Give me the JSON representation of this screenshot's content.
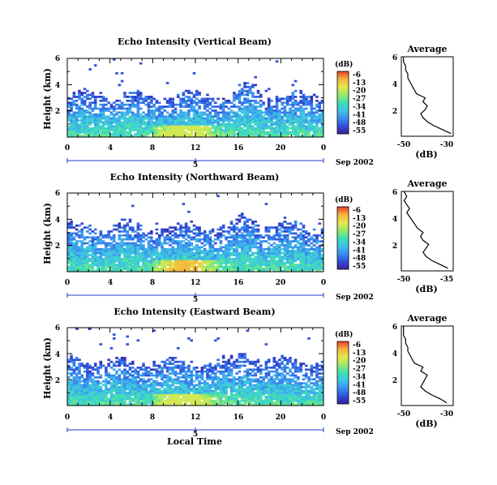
{
  "colors": {
    "colormap": [
      "#3b1fa0",
      "#2e4fd8",
      "#3a8ef0",
      "#3fc4e6",
      "#3ee0b0",
      "#9ae86a",
      "#e6e84a",
      "#f6b23c",
      "#e8402a"
    ],
    "line": "#000000",
    "day_axis": "#1e3cc8"
  },
  "shared": {
    "date_label": "Sep 2002",
    "day_tick_label": "5",
    "local_time_label": "Local Time",
    "ylabel": "Height (km)",
    "cbar_unit": "(dB)",
    "cbar_ticks": [
      "-6",
      "-13",
      "-20",
      "-27",
      "-34",
      "-41",
      "-48",
      "-55"
    ],
    "avg_title": "Average",
    "avg_xlabel": "(dB)",
    "time_ticks": [
      "0",
      "4",
      "8",
      "12",
      "16",
      "20",
      "0"
    ],
    "height_ticks": [
      "6",
      "4",
      "2"
    ],
    "avg_height_ticks": [
      "6",
      "4",
      "2"
    ]
  },
  "chart_data": [
    {
      "type": "heatmap",
      "title": "Echo Intensity (Vertical Beam)",
      "xlabel": "",
      "ylabel": "Height (km)",
      "x_ticks": [
        "0",
        "4",
        "8",
        "12",
        "16",
        "20",
        "0"
      ],
      "y_ticks": [
        "6",
        "4",
        "2"
      ],
      "xlim_hours": [
        0,
        24
      ],
      "ylim_km": [
        0,
        6
      ],
      "colorbar": {
        "unit": "(dB)",
        "range": [
          -55,
          -6
        ],
        "ticks": [
          -6,
          -13,
          -20,
          -27,
          -34,
          -41,
          -48,
          -55
        ]
      },
      "echo_top_km": 3.2,
      "peak_db": -20,
      "average_profile": {
        "type": "line",
        "title": "Average",
        "xlabel": "(dB)",
        "x_tick_labels": [
          "-50",
          "-30"
        ],
        "xlim": [
          -52,
          -28
        ],
        "ylim": [
          0,
          6
        ],
        "height_km": [
          0.2,
          0.5,
          0.8,
          1.1,
          1.4,
          1.7,
          2.0,
          2.3,
          2.6,
          2.9,
          3.2,
          3.5,
          3.8,
          4.1,
          4.4,
          4.7,
          5.0,
          5.3,
          5.6,
          6.0
        ],
        "values_db": [
          -29,
          -33,
          -37,
          -40,
          -42,
          -43,
          -41,
          -40,
          -42,
          -41,
          -45,
          -46,
          -47,
          -48,
          -49,
          -49,
          -50,
          -50,
          -51,
          -51
        ]
      }
    },
    {
      "type": "heatmap",
      "title": "Echo Intensity (Northward Beam)",
      "xlabel": "",
      "ylabel": "Height (km)",
      "x_ticks": [
        "0",
        "4",
        "8",
        "12",
        "16",
        "20",
        "0"
      ],
      "y_ticks": [
        "6",
        "4",
        "2"
      ],
      "xlim_hours": [
        0,
        24
      ],
      "ylim_km": [
        0,
        6
      ],
      "colorbar": {
        "unit": "(dB)",
        "range": [
          -55,
          -6
        ],
        "ticks": [
          -6,
          -13,
          -20,
          -27,
          -34,
          -41,
          -48,
          -55
        ]
      },
      "echo_top_km": 3.5,
      "peak_db": -13,
      "average_profile": {
        "type": "line",
        "title": "Average",
        "xlabel": "(dB)",
        "x_tick_labels": [
          "-50",
          "-35"
        ],
        "xlim": [
          -52,
          -33
        ],
        "ylim": [
          0,
          6
        ],
        "height_km": [
          0.2,
          0.5,
          0.8,
          1.1,
          1.4,
          1.7,
          2.0,
          2.3,
          2.6,
          2.9,
          3.2,
          3.5,
          3.8,
          4.1,
          4.4,
          4.7,
          5.0,
          5.3,
          5.6,
          6.0
        ],
        "values_db": [
          -35,
          -38,
          -41,
          -43,
          -44,
          -43,
          -42,
          -44,
          -45,
          -44,
          -46,
          -47,
          -48,
          -49,
          -50,
          -49,
          -50,
          -51,
          -50,
          -51
        ]
      }
    },
    {
      "type": "heatmap",
      "title": "Echo Intensity (Eastward Beam)",
      "xlabel": "Local Time",
      "ylabel": "Height (km)",
      "x_ticks": [
        "0",
        "4",
        "8",
        "12",
        "16",
        "20",
        "0"
      ],
      "y_ticks": [
        "6",
        "4",
        "2"
      ],
      "xlim_hours": [
        0,
        24
      ],
      "ylim_km": [
        0,
        6
      ],
      "colorbar": {
        "unit": "(dB)",
        "range": [
          -55,
          -6
        ],
        "ticks": [
          -6,
          -13,
          -20,
          -27,
          -34,
          -41,
          -48,
          -55
        ]
      },
      "echo_top_km": 3.4,
      "peak_db": -20,
      "average_profile": {
        "type": "line",
        "title": "Average",
        "xlabel": "(dB)",
        "x_tick_labels": [
          "-50",
          "-30"
        ],
        "xlim": [
          -52,
          -28
        ],
        "ylim": [
          0,
          6
        ],
        "height_km": [
          0.2,
          0.5,
          0.8,
          1.1,
          1.4,
          1.7,
          2.0,
          2.3,
          2.6,
          2.9,
          3.2,
          3.5,
          3.8,
          4.1,
          4.4,
          4.7,
          5.0,
          5.3,
          5.6,
          6.0
        ],
        "values_db": [
          -31,
          -34,
          -38,
          -41,
          -43,
          -42,
          -41,
          -40,
          -43,
          -42,
          -46,
          -47,
          -48,
          -49,
          -49,
          -50,
          -50,
          -51,
          -51,
          -51
        ]
      }
    }
  ]
}
